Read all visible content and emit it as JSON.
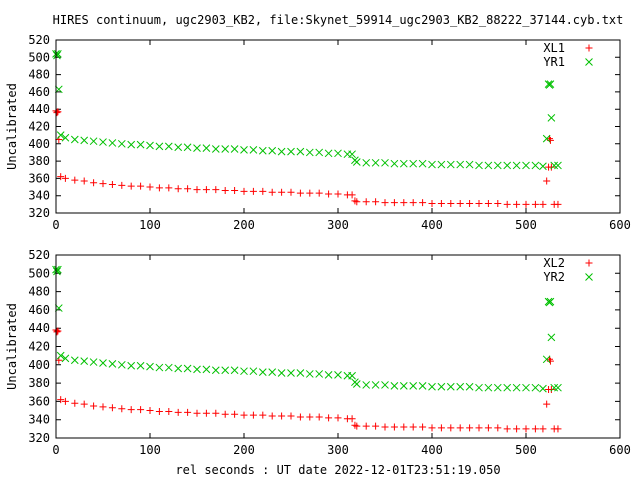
{
  "title": "HIRES continuum, ugc2903_KB2, file:Skynet_59914_ugc2903_KB2_88222_37144.cyb.txt",
  "xlabel": "rel seconds : UT date 2022-12-01T23:51:19.050",
  "colors": {
    "red": "#ff0000",
    "green": "#00c000"
  },
  "chart_data": [
    {
      "type": "scatter",
      "title": "HIRES continuum, ugc2903_KB2, file:Skynet_59914_ugc2903_KB2_88222_37144.cyb.txt",
      "ylabel": "Uncalibrated",
      "xlim": [
        0,
        600
      ],
      "ylim": [
        320,
        520
      ],
      "xticks": [
        0,
        100,
        200,
        300,
        400,
        500,
        600
      ],
      "yticks": [
        320,
        340,
        360,
        380,
        400,
        420,
        440,
        460,
        480,
        500,
        520
      ],
      "grid": false,
      "legend": "top-right",
      "series": [
        {
          "name": "XL1",
          "marker": "plus",
          "color": "#ff0000",
          "points": [
            [
              0,
              438
            ],
            [
              1,
              436
            ],
            [
              2,
              437
            ],
            [
              3,
              405
            ],
            [
              5,
              362
            ],
            [
              10,
              360
            ],
            [
              20,
              358
            ],
            [
              30,
              357
            ],
            [
              40,
              355
            ],
            [
              50,
              354
            ],
            [
              60,
              353
            ],
            [
              70,
              352
            ],
            [
              80,
              351
            ],
            [
              90,
              351
            ],
            [
              100,
              350
            ],
            [
              110,
              349
            ],
            [
              120,
              349
            ],
            [
              130,
              348
            ],
            [
              140,
              348
            ],
            [
              150,
              347
            ],
            [
              160,
              347
            ],
            [
              170,
              347
            ],
            [
              180,
              346
            ],
            [
              190,
              346
            ],
            [
              200,
              345
            ],
            [
              210,
              345
            ],
            [
              220,
              345
            ],
            [
              230,
              344
            ],
            [
              240,
              344
            ],
            [
              250,
              344
            ],
            [
              260,
              343
            ],
            [
              270,
              343
            ],
            [
              280,
              343
            ],
            [
              290,
              342
            ],
            [
              300,
              342
            ],
            [
              310,
              341
            ],
            [
              315,
              341
            ],
            [
              318,
              334
            ],
            [
              320,
              333
            ],
            [
              330,
              333
            ],
            [
              340,
              333
            ],
            [
              350,
              332
            ],
            [
              360,
              332
            ],
            [
              370,
              332
            ],
            [
              380,
              332
            ],
            [
              390,
              332
            ],
            [
              400,
              331
            ],
            [
              410,
              331
            ],
            [
              420,
              331
            ],
            [
              430,
              331
            ],
            [
              440,
              331
            ],
            [
              450,
              331
            ],
            [
              460,
              331
            ],
            [
              470,
              331
            ],
            [
              480,
              330
            ],
            [
              490,
              330
            ],
            [
              500,
              330
            ],
            [
              510,
              330
            ],
            [
              518,
              330
            ],
            [
              522,
              357
            ],
            [
              524,
              373
            ],
            [
              525,
              406
            ],
            [
              526,
              404
            ],
            [
              527,
              373
            ],
            [
              530,
              330
            ],
            [
              534,
              330
            ]
          ]
        },
        {
          "name": "YR1",
          "marker": "cross",
          "color": "#00c000",
          "points": [
            [
              0,
              504
            ],
            [
              1,
              502
            ],
            [
              2,
              504
            ],
            [
              3,
              463
            ],
            [
              5,
              410
            ],
            [
              10,
              407
            ],
            [
              20,
              405
            ],
            [
              30,
              404
            ],
            [
              40,
              403
            ],
            [
              50,
              402
            ],
            [
              60,
              401
            ],
            [
              70,
              400
            ],
            [
              80,
              399
            ],
            [
              90,
              399
            ],
            [
              100,
              398
            ],
            [
              110,
              397
            ],
            [
              120,
              397
            ],
            [
              130,
              396
            ],
            [
              140,
              396
            ],
            [
              150,
              395
            ],
            [
              160,
              395
            ],
            [
              170,
              394
            ],
            [
              180,
              394
            ],
            [
              190,
              394
            ],
            [
              200,
              393
            ],
            [
              210,
              393
            ],
            [
              220,
              392
            ],
            [
              230,
              392
            ],
            [
              240,
              391
            ],
            [
              250,
              391
            ],
            [
              260,
              391
            ],
            [
              270,
              390
            ],
            [
              280,
              390
            ],
            [
              290,
              389
            ],
            [
              300,
              389
            ],
            [
              310,
              388
            ],
            [
              315,
              388
            ],
            [
              318,
              381
            ],
            [
              320,
              379
            ],
            [
              330,
              378
            ],
            [
              340,
              378
            ],
            [
              350,
              378
            ],
            [
              360,
              377
            ],
            [
              370,
              377
            ],
            [
              380,
              377
            ],
            [
              390,
              377
            ],
            [
              400,
              376
            ],
            [
              410,
              376
            ],
            [
              420,
              376
            ],
            [
              430,
              376
            ],
            [
              440,
              376
            ],
            [
              450,
              375
            ],
            [
              460,
              375
            ],
            [
              470,
              375
            ],
            [
              480,
              375
            ],
            [
              490,
              375
            ],
            [
              500,
              375
            ],
            [
              510,
              375
            ],
            [
              518,
              374
            ],
            [
              522,
              406
            ],
            [
              524,
              469
            ],
            [
              525,
              468
            ],
            [
              526,
              469
            ],
            [
              527,
              430
            ],
            [
              530,
              375
            ],
            [
              534,
              375
            ]
          ]
        }
      ]
    },
    {
      "type": "scatter",
      "ylabel": "Uncalibrated",
      "xlabel": "rel seconds : UT date 2022-12-01T23:51:19.050",
      "xlim": [
        0,
        600
      ],
      "ylim": [
        320,
        520
      ],
      "xticks": [
        0,
        100,
        200,
        300,
        400,
        500,
        600
      ],
      "yticks": [
        320,
        340,
        360,
        380,
        400,
        420,
        440,
        460,
        480,
        500,
        520
      ],
      "grid": false,
      "legend": "top-right",
      "series": [
        {
          "name": "XL2",
          "marker": "plus",
          "color": "#ff0000",
          "points": [
            [
              0,
              438
            ],
            [
              1,
              436
            ],
            [
              2,
              437
            ],
            [
              3,
              405
            ],
            [
              5,
              362
            ],
            [
              10,
              360
            ],
            [
              20,
              358
            ],
            [
              30,
              357
            ],
            [
              40,
              355
            ],
            [
              50,
              354
            ],
            [
              60,
              353
            ],
            [
              70,
              352
            ],
            [
              80,
              351
            ],
            [
              90,
              351
            ],
            [
              100,
              350
            ],
            [
              110,
              349
            ],
            [
              120,
              349
            ],
            [
              130,
              348
            ],
            [
              140,
              348
            ],
            [
              150,
              347
            ],
            [
              160,
              347
            ],
            [
              170,
              347
            ],
            [
              180,
              346
            ],
            [
              190,
              346
            ],
            [
              200,
              345
            ],
            [
              210,
              345
            ],
            [
              220,
              345
            ],
            [
              230,
              344
            ],
            [
              240,
              344
            ],
            [
              250,
              344
            ],
            [
              260,
              343
            ],
            [
              270,
              343
            ],
            [
              280,
              343
            ],
            [
              290,
              342
            ],
            [
              300,
              342
            ],
            [
              310,
              341
            ],
            [
              315,
              341
            ],
            [
              318,
              334
            ],
            [
              320,
              333
            ],
            [
              330,
              333
            ],
            [
              340,
              333
            ],
            [
              350,
              332
            ],
            [
              360,
              332
            ],
            [
              370,
              332
            ],
            [
              380,
              332
            ],
            [
              390,
              332
            ],
            [
              400,
              331
            ],
            [
              410,
              331
            ],
            [
              420,
              331
            ],
            [
              430,
              331
            ],
            [
              440,
              331
            ],
            [
              450,
              331
            ],
            [
              460,
              331
            ],
            [
              470,
              331
            ],
            [
              480,
              330
            ],
            [
              490,
              330
            ],
            [
              500,
              330
            ],
            [
              510,
              330
            ],
            [
              518,
              330
            ],
            [
              522,
              357
            ],
            [
              524,
              373
            ],
            [
              525,
              406
            ],
            [
              526,
              404
            ],
            [
              527,
              373
            ],
            [
              530,
              330
            ],
            [
              534,
              330
            ]
          ]
        },
        {
          "name": "YR2",
          "marker": "cross",
          "color": "#00c000",
          "points": [
            [
              0,
              504
            ],
            [
              1,
              502
            ],
            [
              2,
              504
            ],
            [
              3,
              462
            ],
            [
              5,
              410
            ],
            [
              10,
              407
            ],
            [
              20,
              405
            ],
            [
              30,
              404
            ],
            [
              40,
              403
            ],
            [
              50,
              402
            ],
            [
              60,
              401
            ],
            [
              70,
              400
            ],
            [
              80,
              399
            ],
            [
              90,
              399
            ],
            [
              100,
              398
            ],
            [
              110,
              397
            ],
            [
              120,
              397
            ],
            [
              130,
              396
            ],
            [
              140,
              396
            ],
            [
              150,
              395
            ],
            [
              160,
              395
            ],
            [
              170,
              394
            ],
            [
              180,
              394
            ],
            [
              190,
              394
            ],
            [
              200,
              393
            ],
            [
              210,
              393
            ],
            [
              220,
              392
            ],
            [
              230,
              392
            ],
            [
              240,
              391
            ],
            [
              250,
              391
            ],
            [
              260,
              391
            ],
            [
              270,
              390
            ],
            [
              280,
              390
            ],
            [
              290,
              389
            ],
            [
              300,
              389
            ],
            [
              310,
              388
            ],
            [
              315,
              388
            ],
            [
              318,
              381
            ],
            [
              320,
              379
            ],
            [
              330,
              378
            ],
            [
              340,
              378
            ],
            [
              350,
              378
            ],
            [
              360,
              377
            ],
            [
              370,
              377
            ],
            [
              380,
              377
            ],
            [
              390,
              377
            ],
            [
              400,
              376
            ],
            [
              410,
              376
            ],
            [
              420,
              376
            ],
            [
              430,
              376
            ],
            [
              440,
              376
            ],
            [
              450,
              375
            ],
            [
              460,
              375
            ],
            [
              470,
              375
            ],
            [
              480,
              375
            ],
            [
              490,
              375
            ],
            [
              500,
              375
            ],
            [
              510,
              375
            ],
            [
              518,
              374
            ],
            [
              522,
              406
            ],
            [
              524,
              469
            ],
            [
              525,
              468
            ],
            [
              526,
              469
            ],
            [
              527,
              430
            ],
            [
              530,
              375
            ],
            [
              534,
              375
            ]
          ]
        }
      ]
    }
  ]
}
